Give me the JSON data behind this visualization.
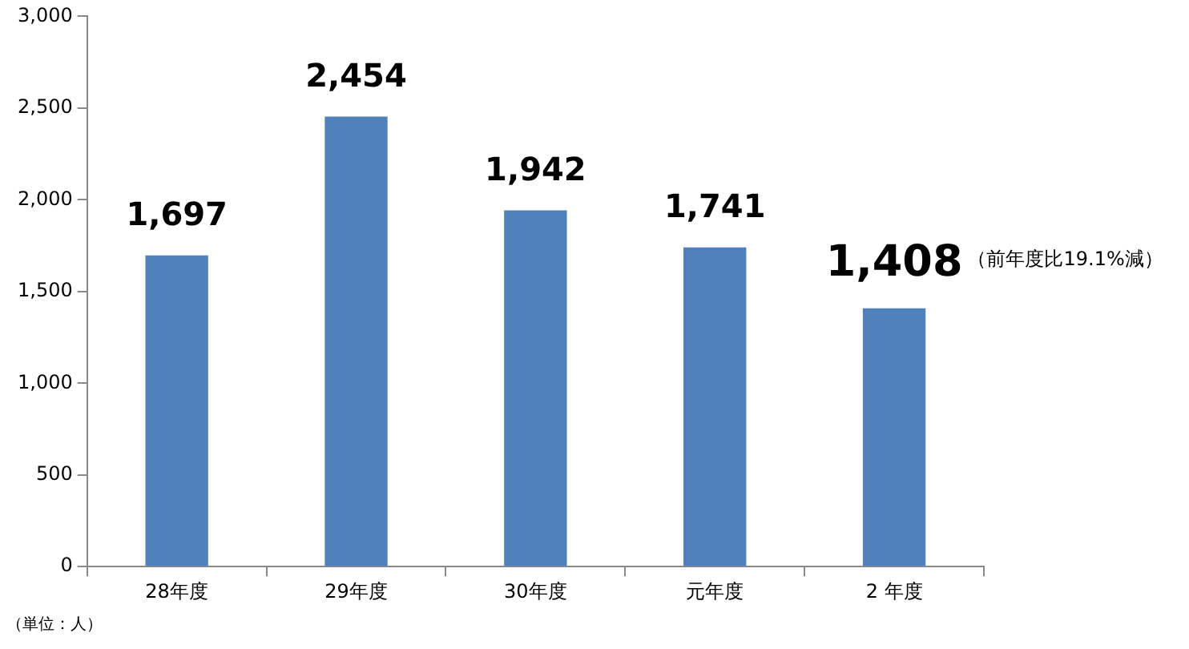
{
  "chart_data": {
    "type": "bar",
    "categories": [
      "28年度",
      "29年度",
      "30年度",
      "元年度",
      "2 年度"
    ],
    "values": [
      1697,
      2454,
      1942,
      1741,
      1408
    ],
    "color": "#4f81bd",
    "value_labels": [
      "1,697",
      "2,454",
      "1,942",
      "1,741",
      "1,408"
    ],
    "ylim": [
      0,
      3000
    ],
    "yticks": [
      {
        "value": 0,
        "label": "0"
      },
      {
        "value": 500,
        "label": "500"
      },
      {
        "value": 1000,
        "label": "1,000"
      },
      {
        "value": 1500,
        "label": "1,500"
      },
      {
        "value": 2000,
        "label": "2,000"
      },
      {
        "value": 2500,
        "label": "2,500"
      },
      {
        "value": 3000,
        "label": "3,000"
      }
    ],
    "grid": false,
    "legend": false,
    "annotations": [
      "（前年度比19.1%減）",
      "（単位：人）"
    ]
  }
}
